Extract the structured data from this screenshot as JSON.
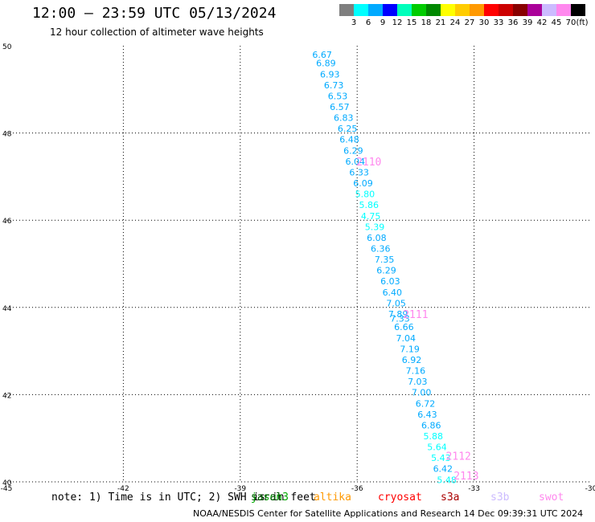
{
  "header": {
    "title": "12:00 – 23:59 UTC 05/13/2024",
    "subtitle": "12 hour collection of altimeter wave heights"
  },
  "legend": {
    "colors": [
      "#7f7f7f",
      "#00ffff",
      "#00aaff",
      "#0000ff",
      "#00ffbb",
      "#00cc00",
      "#008800",
      "#ffff00",
      "#ffcc00",
      "#ff9900",
      "#ff0000",
      "#cc0000",
      "#880000",
      "#aa0099",
      "#ccbbff",
      "#ff88ee",
      "#000000"
    ],
    "labels": [
      "3",
      "6",
      "9",
      "12",
      "15",
      "18",
      "21",
      "24",
      "27",
      "30",
      "33",
      "36",
      "39",
      "42",
      "45",
      "70",
      "(ft)"
    ]
  },
  "axes": {
    "lat_ticks": [
      "50",
      "48",
      "46",
      "44",
      "42",
      "40"
    ],
    "lon_ticks": [
      "-45",
      "-42",
      "-39",
      "-36",
      "-33",
      "-30"
    ]
  },
  "chart_data": {
    "type": "scatter",
    "xlim": [
      -45,
      -30
    ],
    "ylim": [
      40,
      50
    ],
    "grid": true,
    "points": [
      {
        "lon": -36.9,
        "lat": 49.8,
        "text": "6.67"
      },
      {
        "lon": -36.8,
        "lat": 49.6,
        "text": "6.89"
      },
      {
        "lon": -36.7,
        "lat": 49.35,
        "text": "6.93"
      },
      {
        "lon": -36.6,
        "lat": 49.1,
        "text": "6.73"
      },
      {
        "lon": -36.5,
        "lat": 48.85,
        "text": "6.53"
      },
      {
        "lon": -36.45,
        "lat": 48.6,
        "text": "6.57"
      },
      {
        "lon": -36.35,
        "lat": 48.35,
        "text": "6.83"
      },
      {
        "lon": -36.25,
        "lat": 48.1,
        "text": "6.25"
      },
      {
        "lon": -36.2,
        "lat": 47.85,
        "text": "6.48"
      },
      {
        "lon": -36.1,
        "lat": 47.6,
        "text": "6.29"
      },
      {
        "lon": -36.05,
        "lat": 47.35,
        "text": "6.04"
      },
      {
        "lon": -35.95,
        "lat": 47.1,
        "text": "6.33"
      },
      {
        "lon": -35.85,
        "lat": 46.85,
        "text": "6.09"
      },
      {
        "lon": -35.8,
        "lat": 46.6,
        "text": "5.80"
      },
      {
        "lon": -35.7,
        "lat": 46.35,
        "text": "5.86"
      },
      {
        "lon": -35.65,
        "lat": 46.1,
        "text": "4.75"
      },
      {
        "lon": -35.55,
        "lat": 45.85,
        "text": "5.39"
      },
      {
        "lon": -35.5,
        "lat": 45.6,
        "text": "6.08"
      },
      {
        "lon": -35.4,
        "lat": 45.35,
        "text": "6.36"
      },
      {
        "lon": -35.3,
        "lat": 45.1,
        "text": "7.35"
      },
      {
        "lon": -35.25,
        "lat": 44.85,
        "text": "6.29"
      },
      {
        "lon": -35.15,
        "lat": 44.6,
        "text": "6.03"
      },
      {
        "lon": -35.1,
        "lat": 44.35,
        "text": "6.40"
      },
      {
        "lon": -35.0,
        "lat": 44.1,
        "text": "7.05"
      },
      {
        "lon": -34.95,
        "lat": 43.85,
        "text": "7.89"
      },
      {
        "lon": -34.9,
        "lat": 43.75,
        "text": "7.33"
      },
      {
        "lon": -34.8,
        "lat": 43.55,
        "text": "6.66"
      },
      {
        "lon": -34.75,
        "lat": 43.3,
        "text": "7.04"
      },
      {
        "lon": -34.65,
        "lat": 43.05,
        "text": "7.19"
      },
      {
        "lon": -34.6,
        "lat": 42.8,
        "text": "6.92"
      },
      {
        "lon": -34.5,
        "lat": 42.55,
        "text": "7.16"
      },
      {
        "lon": -34.45,
        "lat": 42.3,
        "text": "7.03"
      },
      {
        "lon": -34.35,
        "lat": 42.05,
        "text": "7.00"
      },
      {
        "lon": -34.25,
        "lat": 41.8,
        "text": "6.72"
      },
      {
        "lon": -34.2,
        "lat": 41.55,
        "text": "6.43"
      },
      {
        "lon": -34.1,
        "lat": 41.3,
        "text": "6.86"
      },
      {
        "lon": -34.05,
        "lat": 41.05,
        "text": "5.88"
      },
      {
        "lon": -33.95,
        "lat": 40.8,
        "text": "5.64"
      },
      {
        "lon": -33.85,
        "lat": 40.55,
        "text": "5.43"
      },
      {
        "lon": -33.8,
        "lat": 40.3,
        "text": "6.42"
      },
      {
        "lon": -33.7,
        "lat": 40.05,
        "text": "5.48"
      }
    ],
    "annotations": [
      {
        "lon": -35.7,
        "lat": 47.35,
        "text": "2110"
      },
      {
        "lon": -34.5,
        "lat": 43.85,
        "text": "2111"
      },
      {
        "lon": -33.4,
        "lat": 40.6,
        "text": "2112"
      },
      {
        "lon": -33.2,
        "lat": 40.15,
        "text": "2113"
      }
    ]
  },
  "satellites": [
    {
      "name": "jason3",
      "color": "#00aa00"
    },
    {
      "name": "saral",
      "color": "#005500"
    },
    {
      "name": "altika",
      "color": "#ff9900"
    },
    {
      "name": "cryosat",
      "color": "#ff0000"
    },
    {
      "name": "s3a",
      "color": "#aa0000"
    },
    {
      "name": "s3b",
      "color": "#ccbbff"
    },
    {
      "name": "swot",
      "color": "#ff88ee"
    }
  ],
  "note": "note: 1) Time is in UTC; 2) SWH is in feet",
  "footer": "NOAA/NESDIS Center for Satellite Applications and Research   14 Dec 09:39:31 UTC 2024"
}
